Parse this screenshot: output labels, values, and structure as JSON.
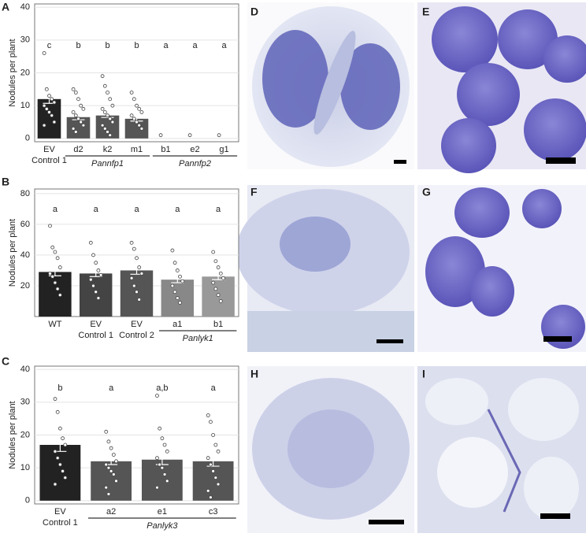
{
  "chart_data": [
    {
      "type": "bar",
      "panel_label": "A",
      "ylabel": "Nodules per plant",
      "categories": [
        "EV",
        "d2",
        "k2",
        "m1",
        "b1",
        "e2",
        "g1"
      ],
      "category_notes": [
        "Control 1",
        null,
        null,
        null,
        null,
        null,
        null
      ],
      "values": [
        12,
        6.5,
        7,
        6,
        0,
        0,
        0
      ],
      "errors": [
        1.3,
        0.8,
        0.6,
        0.7,
        0,
        0,
        0
      ],
      "colors": [
        "#222222",
        "#555555",
        "#555555",
        "#555555",
        "#555555",
        "#555555",
        "#555555"
      ],
      "significance": [
        "c",
        "b",
        "b",
        "b",
        "a",
        "a",
        "a"
      ],
      "points": [
        [
          26,
          15,
          13,
          12,
          11,
          10,
          9,
          8,
          7,
          5,
          4
        ],
        [
          15,
          14,
          12,
          10,
          9,
          8,
          7,
          6,
          5,
          4,
          3,
          2
        ],
        [
          19,
          16,
          14,
          12,
          10,
          9,
          8,
          7,
          6,
          5,
          4,
          3,
          2,
          1
        ],
        [
          14,
          12,
          10,
          9,
          8,
          7,
          6,
          5,
          4,
          3
        ],
        [
          1
        ],
        [
          1
        ],
        [
          1
        ]
      ],
      "groups": [
        {
          "label": "Pannfp1",
          "members": [
            "d2",
            "k2",
            "m1"
          ]
        },
        {
          "label": "Pannfp2",
          "members": [
            "b1",
            "e2",
            "g1"
          ]
        }
      ],
      "ylim": [
        -1,
        41
      ],
      "yticks": [
        0,
        10,
        20,
        30,
        40
      ],
      "grid": true
    },
    {
      "type": "bar",
      "panel_label": "B",
      "ylabel": "Nodules per plant",
      "categories": [
        "WT",
        "EV",
        "EV",
        "a1",
        "b1"
      ],
      "category_notes": [
        null,
        "Control 1",
        "Control 2",
        null,
        null
      ],
      "values": [
        29,
        28,
        30,
        24,
        26
      ],
      "errors": [
        2.5,
        2,
        2.5,
        2,
        2
      ],
      "colors": [
        "#222222",
        "#444444",
        "#555555",
        "#888888",
        "#999999"
      ],
      "significance": [
        "a",
        "a",
        "a",
        "a",
        "a"
      ],
      "points": [
        [
          59,
          45,
          42,
          38,
          32,
          28,
          26,
          22,
          18,
          14
        ],
        [
          48,
          40,
          35,
          30,
          27,
          24,
          20,
          16,
          12
        ],
        [
          48,
          44,
          38,
          32,
          28,
          25,
          20,
          16,
          11
        ],
        [
          43,
          35,
          30,
          26,
          23,
          20,
          16,
          12,
          9
        ],
        [
          42,
          36,
          32,
          28,
          25,
          22,
          18,
          14,
          10
        ]
      ],
      "groups": [
        {
          "label": "Panlyk1",
          "members": [
            "a1",
            "b1"
          ]
        }
      ],
      "ylim": [
        0,
        83
      ],
      "yticks": [
        20,
        40,
        60,
        80
      ],
      "grid": true
    },
    {
      "type": "bar",
      "panel_label": "C",
      "ylabel": "Nodules per plant",
      "categories": [
        "EV",
        "a2",
        "e1",
        "c3"
      ],
      "category_notes": [
        "Control 1",
        null,
        null,
        null
      ],
      "values": [
        17,
        12,
        12.5,
        12
      ],
      "errors": [
        2,
        1,
        1.5,
        1.5
      ],
      "colors": [
        "#222222",
        "#555555",
        "#555555",
        "#555555"
      ],
      "significance": [
        "b",
        "a",
        "a,b",
        "a"
      ],
      "points": [
        [
          31,
          27,
          22,
          19,
          17,
          15,
          13,
          11,
          9,
          7,
          5
        ],
        [
          21,
          18,
          16,
          14,
          12,
          11,
          10,
          9,
          8,
          6,
          4,
          2
        ],
        [
          32,
          22,
          19,
          17,
          15,
          13,
          11,
          10,
          8,
          6,
          4
        ],
        [
          26,
          24,
          20,
          17,
          15,
          13,
          11,
          9,
          7,
          5,
          3,
          1
        ]
      ],
      "groups": [
        {
          "label": "Panlyk3",
          "members": [
            "a2",
            "e1",
            "c3"
          ]
        }
      ],
      "ylim": [
        -1,
        41
      ],
      "yticks": [
        0,
        10,
        20,
        30,
        40
      ],
      "grid": true
    }
  ],
  "image_panels": [
    {
      "label": "D"
    },
    {
      "label": "E"
    },
    {
      "label": "F"
    },
    {
      "label": "G"
    },
    {
      "label": "H"
    },
    {
      "label": "I"
    }
  ]
}
